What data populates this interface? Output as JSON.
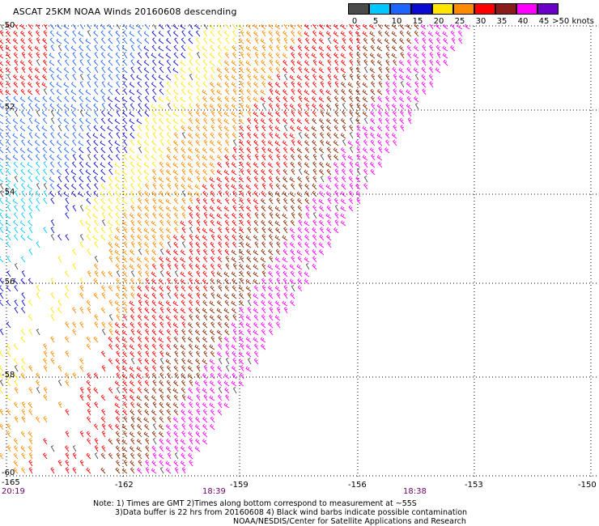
{
  "title": "ASCAT 25KM NOAA Winds 20160608 descending",
  "legend": {
    "labels": [
      "0",
      "5",
      "10",
      "15",
      "20",
      "25",
      "30",
      "35",
      "40",
      "45",
      ">50 knots"
    ],
    "colors": [
      "#4a4a4a",
      "#00c8ff",
      "#1e64ff",
      "#0a0ad2",
      "#ffe600",
      "#ff8c00",
      "#ff0000",
      "#a01a1a",
      "#8b2a00",
      "#ff00ff",
      "#6a00c8"
    ]
  },
  "axes": {
    "x_labels": [
      "-165",
      "-162",
      "-159",
      "-156",
      "-153",
      "-150"
    ],
    "y_labels": [
      "-50",
      "-52",
      "-54",
      "-56",
      "-58",
      "-60"
    ]
  },
  "times": [
    "20:19",
    "18:39",
    "18:38"
  ],
  "notes": [
    "Note: 1) Times are GMT 2)Times along bottom correspond to measurement at ~55S",
    "3)Data buffer is 22 hrs from 20160608 4) Black wind barbs indicate possible contamination",
    "NOAA/NESDIS/Center for Satellite Applications and Research"
  ]
}
